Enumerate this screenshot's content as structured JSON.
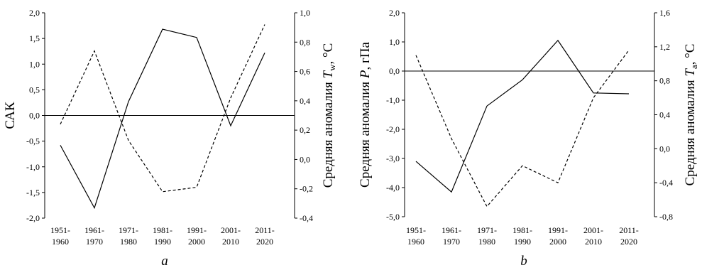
{
  "chart_data": [
    {
      "type": "line",
      "panel_label": "a",
      "categories": [
        [
          "1951-",
          "1960"
        ],
        [
          "1961-",
          "1970"
        ],
        [
          "1971-",
          "1980"
        ],
        [
          "1981-",
          "1990"
        ],
        [
          "1991-",
          "2000"
        ],
        [
          "2001-",
          "2010"
        ],
        [
          "2011-",
          "2020"
        ]
      ],
      "left_axis": {
        "label": "САК",
        "ylim": [
          -2.0,
          2.0
        ],
        "ticks": [
          "2,0",
          "1,5",
          "1,0",
          "0,5",
          "0,0",
          "-0,5",
          "-1,0",
          "-1,5",
          "-2,0"
        ]
      },
      "right_axis": {
        "label_parts": [
          "Средняя аномалия ",
          "T",
          "w",
          ", °C"
        ],
        "ylim": [
          -0.4,
          1.0
        ],
        "ticks": [
          "1,0",
          "0,8",
          "0,6",
          "0,4",
          "0,2",
          "0,0",
          "-0,2",
          "-0,4"
        ]
      },
      "series": [
        {
          "style": "solid",
          "axis": "left",
          "values": [
            -0.58,
            -1.8,
            0.27,
            1.68,
            1.52,
            -0.2,
            1.22
          ]
        },
        {
          "style": "dashed",
          "axis": "right",
          "values": [
            0.24,
            0.74,
            0.13,
            -0.22,
            -0.19,
            0.42,
            0.92
          ]
        }
      ],
      "zero_line": true
    },
    {
      "type": "line",
      "panel_label": "b",
      "categories": [
        [
          "1951-",
          "1960"
        ],
        [
          "1961-",
          "1970"
        ],
        [
          "1971-",
          "1980"
        ],
        [
          "1981-",
          "1990"
        ],
        [
          "1991-",
          "2000"
        ],
        [
          "2001-",
          "2010"
        ],
        [
          "2011-",
          "2020"
        ]
      ],
      "left_axis": {
        "label_parts": [
          "Средняя аномалия ",
          "P",
          ", гПа"
        ],
        "ylim": [
          -5.0,
          2.0
        ],
        "ticks": [
          "2,0",
          "1,0",
          "0,0",
          "-1,0",
          "-2,0",
          "-3,0",
          "-4,0",
          "-5,0"
        ]
      },
      "right_axis": {
        "label_parts": [
          "Средняя аномалия ",
          "T",
          "a",
          ", °C"
        ],
        "ylim": [
          -0.8,
          1.6
        ],
        "ticks": [
          "1,6",
          "1,2",
          "0,8",
          "0,4",
          "0,0",
          "-0,4",
          "-0,8"
        ]
      },
      "series": [
        {
          "style": "solid",
          "axis": "left",
          "values": [
            -3.1,
            -4.15,
            -1.2,
            -0.3,
            1.05,
            -0.75,
            -0.78
          ]
        },
        {
          "style": "dashed",
          "axis": "right",
          "values": [
            1.1,
            0.12,
            -0.68,
            -0.2,
            -0.4,
            0.6,
            1.16
          ]
        }
      ],
      "zero_line": true
    }
  ]
}
